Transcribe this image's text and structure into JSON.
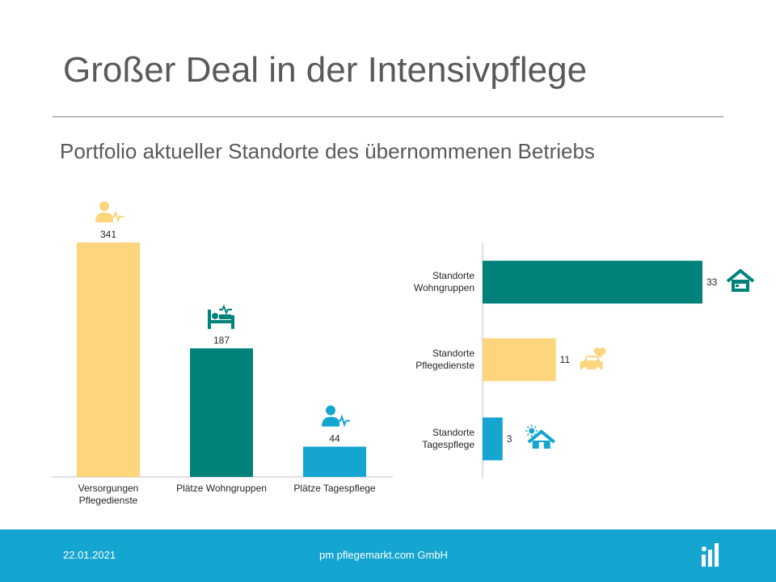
{
  "title": "Großer Deal in der Intensivpflege",
  "subtitle": "Portfolio aktueller Standorte des übernommenen Betriebs",
  "colors": {
    "yellow": "#fcd57c",
    "teal": "#00827a",
    "blue": "#15a5d1",
    "footer": "#15a5d1",
    "text": "#595959"
  },
  "chart_data": [
    {
      "type": "bar",
      "orientation": "vertical",
      "categories": [
        [
          "Versorgungen",
          "Pflegedienste"
        ],
        [
          "Plätze Wohngruppen"
        ],
        [
          "Plätze Tagespflege"
        ]
      ],
      "values": [
        341,
        187,
        44
      ],
      "bar_colors": [
        "#fcd57c",
        "#00827a",
        "#15a5d1"
      ],
      "icons": [
        "caregiver-icon",
        "hospital-bed-icon",
        "caregiver-icon"
      ],
      "ylim": [
        0,
        341
      ],
      "grid": false
    },
    {
      "type": "bar",
      "orientation": "horizontal",
      "categories": [
        [
          "Standorte",
          "Wohngruppen"
        ],
        [
          "Standorte",
          "Pflegedienste"
        ],
        [
          "Standorte",
          "Tagespflege"
        ]
      ],
      "values": [
        33,
        11,
        3
      ],
      "bar_colors": [
        "#00827a",
        "#fcd57c",
        "#15a5d1"
      ],
      "icons": [
        "house-bed-icon",
        "car-heart-icon",
        "house-sun-icon"
      ],
      "xlim": [
        0,
        33
      ],
      "grid": false
    }
  ],
  "footer": {
    "date": "22.01.2021",
    "company": "pm pflegemarkt.com GmbH",
    "logo_icon": "pflegemarkt-logo-icon"
  }
}
